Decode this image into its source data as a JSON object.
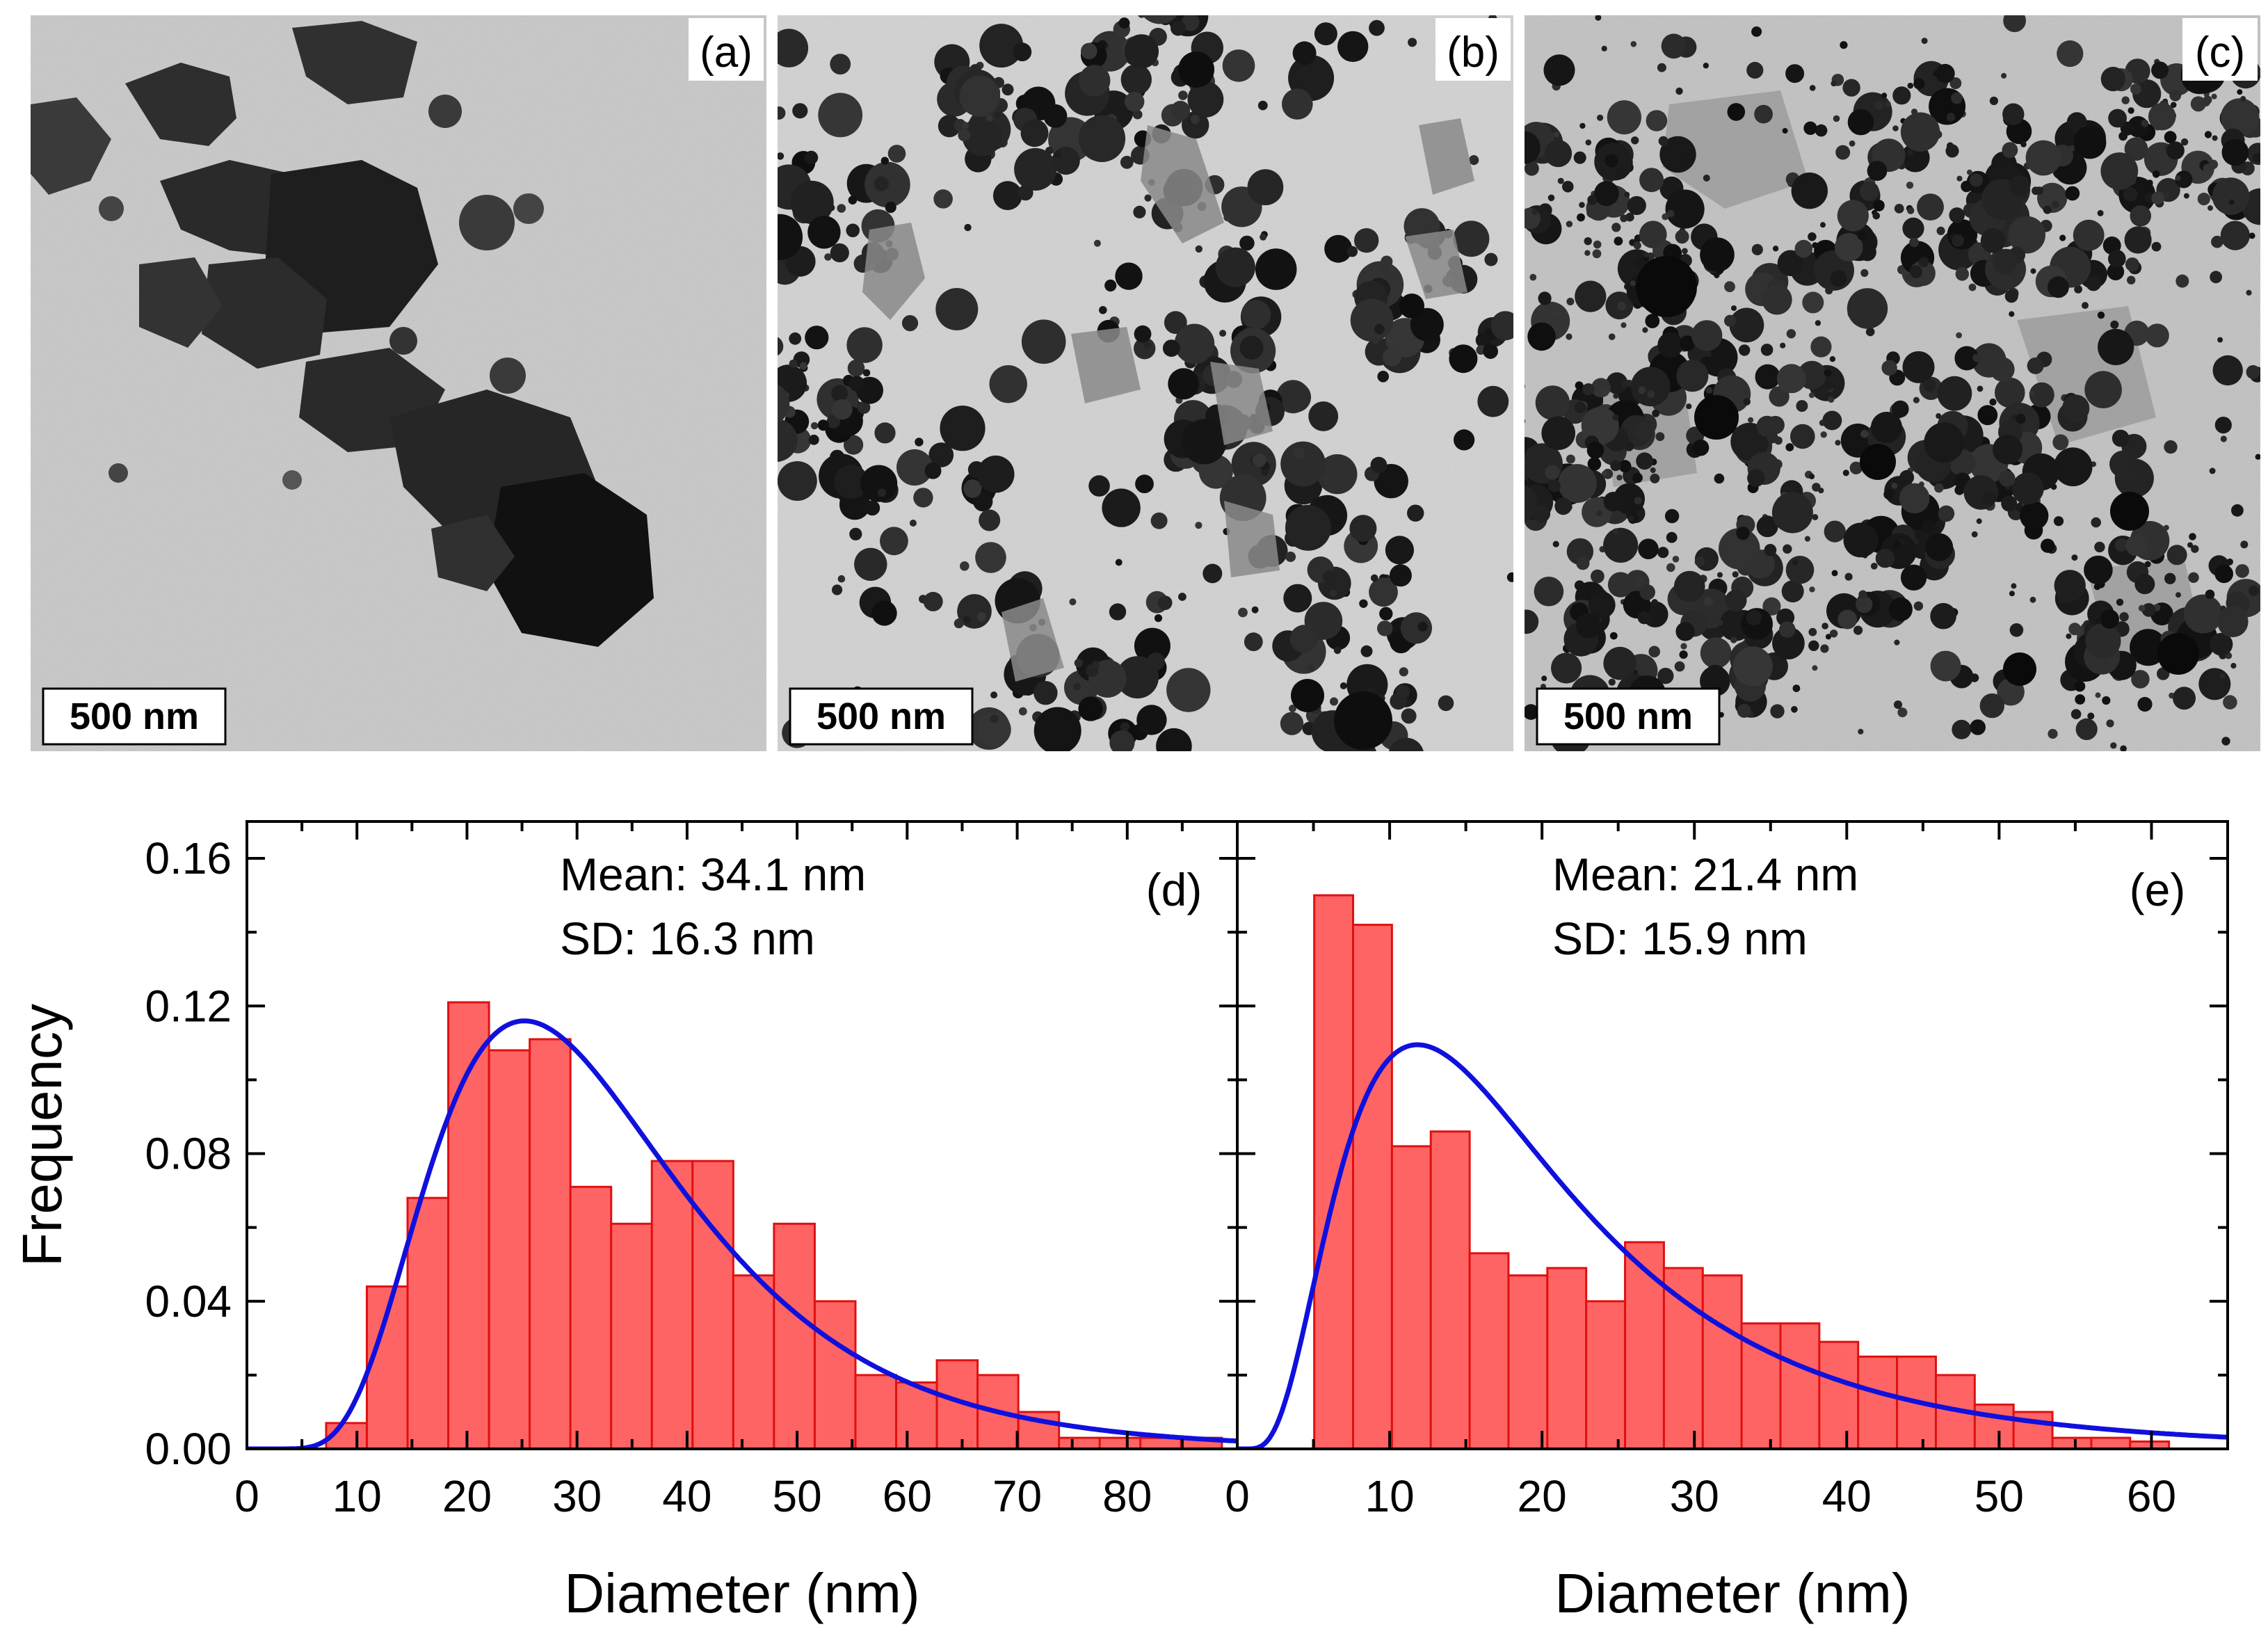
{
  "tem_panels": [
    {
      "label": "(a)",
      "scale_bar": "500 nm"
    },
    {
      "label": "(b)",
      "scale_bar": "500 nm"
    },
    {
      "label": "(c)",
      "scale_bar": "500 nm"
    }
  ],
  "shared_ylabel": "Frequency",
  "colors": {
    "bar_fill": "#ff6464",
    "bar_edge": "#e01010",
    "fit_line": "#1010dd",
    "axis": "#000000",
    "tem_bg": "#cfcfcf",
    "tem_dark": "#1a1a1a"
  },
  "chart_data": [
    {
      "type": "bar",
      "panel_label": "(d)",
      "xlabel": "Diameter (nm)",
      "ylabel": "Frequency",
      "xlim": [
        0,
        90
      ],
      "ylim": [
        0,
        0.17
      ],
      "xticks": [
        "0",
        "10",
        "20",
        "30",
        "40",
        "50",
        "60",
        "70",
        "80"
      ],
      "yticks": [
        "0.00",
        "0.04",
        "0.08",
        "0.12",
        "0.16"
      ],
      "bin_width": 3.7,
      "bin_starts": [
        7.2,
        10.9,
        14.6,
        18.3,
        22.0,
        25.7,
        29.4,
        33.1,
        36.8,
        40.5,
        44.2,
        47.9,
        51.6,
        55.3,
        59.0,
        62.7,
        66.4,
        70.1,
        73.8,
        77.5,
        81.2,
        84.9
      ],
      "values": [
        0.007,
        0.044,
        0.068,
        0.121,
        0.108,
        0.111,
        0.071,
        0.061,
        0.078,
        0.078,
        0.047,
        0.061,
        0.04,
        0.02,
        0.018,
        0.024,
        0.02,
        0.01,
        0.003,
        0.003,
        0.003,
        0.003
      ],
      "fit": {
        "type": "lognormal",
        "mu": 3.43,
        "sigma": 0.45,
        "scale": 3.65,
        "x_start": 0,
        "x_end": 90
      },
      "stats": {
        "mean": "Mean: 34.1 nm",
        "sd": "SD: 16.3 nm"
      }
    },
    {
      "type": "bar",
      "panel_label": "(e)",
      "xlabel": "Diameter (nm)",
      "ylabel": "Frequency",
      "xlim": [
        0,
        65
      ],
      "ylim": [
        0,
        0.17
      ],
      "xticks": [
        "0",
        "10",
        "20",
        "30",
        "40",
        "50",
        "60"
      ],
      "yticks": [
        "0.00",
        "0.04",
        "0.08",
        "0.12",
        "0.16"
      ],
      "bin_width": 2.55,
      "bin_starts": [
        5.05,
        7.6,
        10.15,
        12.7,
        15.25,
        17.8,
        20.35,
        22.9,
        25.45,
        28.0,
        30.55,
        33.1,
        35.65,
        38.2,
        40.75,
        43.3,
        45.85,
        48.4,
        50.95,
        53.5,
        56.05,
        58.6
      ],
      "values": [
        0.15,
        0.142,
        0.082,
        0.086,
        0.053,
        0.047,
        0.049,
        0.04,
        0.056,
        0.049,
        0.047,
        0.034,
        0.034,
        0.029,
        0.025,
        0.025,
        0.02,
        0.012,
        0.01,
        0.003,
        0.003,
        0.002
      ],
      "fit": {
        "type": "lognormal",
        "mu": 2.88,
        "sigma": 0.64,
        "scale": 2.55,
        "x_start": 0,
        "x_end": 65
      },
      "stats": {
        "mean": "Mean: 21.4 nm",
        "sd": "SD: 15.9 nm"
      }
    }
  ]
}
